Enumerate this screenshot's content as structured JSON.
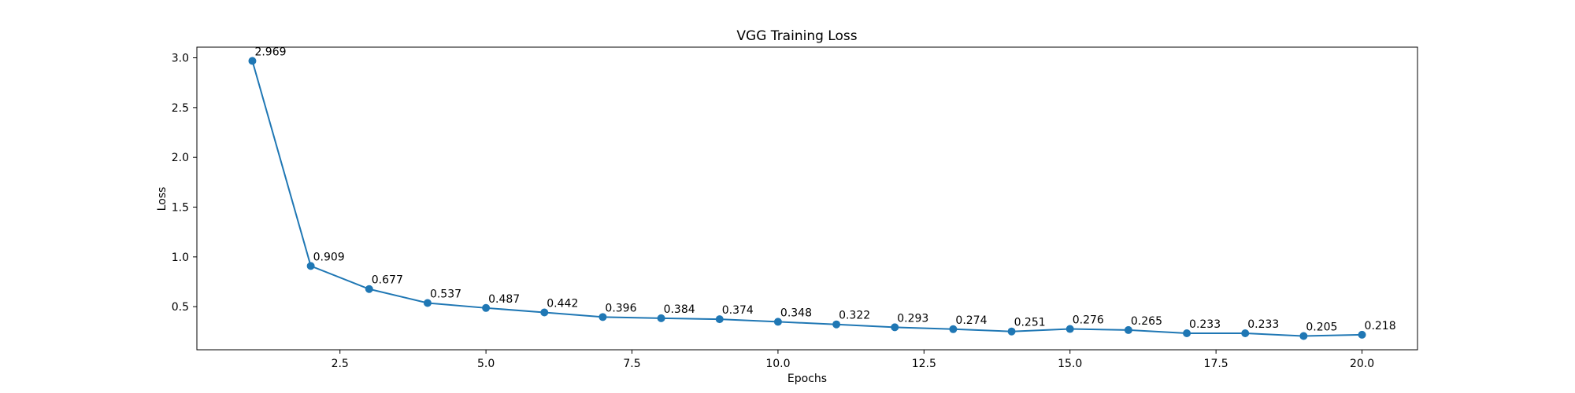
{
  "chart_data": {
    "type": "line",
    "title": "VGG Training Loss",
    "xlabel": "Epochs",
    "ylabel": "Loss",
    "xlim": [
      0.05,
      20.95
    ],
    "ylim": [
      0.067,
      3.107
    ],
    "xticks": [
      2.5,
      5.0,
      7.5,
      10.0,
      12.5,
      15.0,
      17.5,
      20.0
    ],
    "xtick_labels": [
      "2.5",
      "5.0",
      "7.5",
      "10.0",
      "12.5",
      "15.0",
      "17.5",
      "20.0"
    ],
    "yticks": [
      0.5,
      1.0,
      1.5,
      2.0,
      2.5,
      3.0
    ],
    "ytick_labels": [
      "0.5",
      "1.0",
      "1.5",
      "2.0",
      "2.5",
      "3.0"
    ],
    "grid": false,
    "series": [
      {
        "color": "#1f77b4",
        "x": [
          1,
          2,
          3,
          4,
          5,
          6,
          7,
          8,
          9,
          10,
          11,
          12,
          13,
          14,
          15,
          16,
          17,
          18,
          19,
          20
        ],
        "y": [
          2.969,
          0.909,
          0.677,
          0.537,
          0.487,
          0.442,
          0.396,
          0.384,
          0.374,
          0.348,
          0.322,
          0.293,
          0.274,
          0.251,
          0.276,
          0.265,
          0.233,
          0.233,
          0.205,
          0.218
        ],
        "labels": [
          "2.969",
          "0.909",
          "0.677",
          "0.537",
          "0.487",
          "0.442",
          "0.396",
          "0.384",
          "0.374",
          "0.348",
          "0.322",
          "0.293",
          "0.274",
          "0.251",
          "0.276",
          "0.265",
          "0.233",
          "0.233",
          "0.205",
          "0.218"
        ]
      }
    ]
  }
}
